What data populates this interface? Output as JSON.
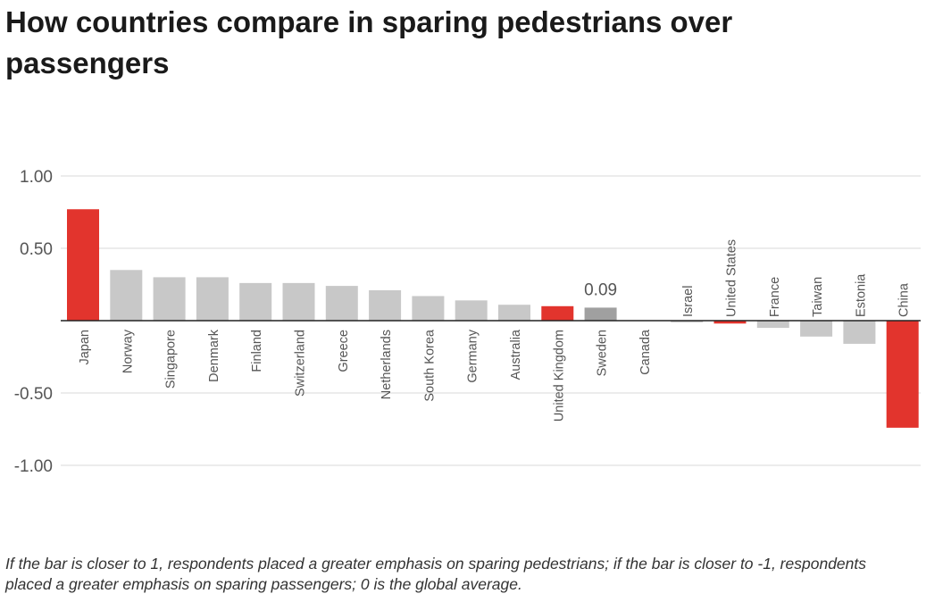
{
  "title": "How countries compare in sparing pedestrians over passengers",
  "note": "If the bar is closer to 1, respondents placed a greater emphasis on sparing pedestrians; if the bar is closer to -1, respondents placed a greater emphasis on sparing passengers; 0 is the global average.",
  "colors": {
    "highlight": "#e2342d",
    "default": "#c8c8c8",
    "sweden": "#a0a0a0",
    "grid": "#d9d9d9",
    "axis": "#222222",
    "text": "#555555"
  },
  "chart_data": {
    "type": "bar",
    "title": "How countries compare in sparing pedestrians over passengers",
    "xlabel": "",
    "ylabel": "",
    "ylim": [
      -1.0,
      1.0
    ],
    "yticks": [
      1.0,
      0.5,
      -0.5,
      -1.0
    ],
    "ytick_labels": [
      "1.00",
      "0.50",
      "-0.50",
      "-1.00"
    ],
    "grid": true,
    "categories": [
      "Japan",
      "Norway",
      "Singapore",
      "Denmark",
      "Finland",
      "Switzerland",
      "Greece",
      "Netherlands",
      "South Korea",
      "Germany",
      "Australia",
      "United Kingdom",
      "Sweden",
      "Canada",
      "Israel",
      "United States",
      "France",
      "Taiwan",
      "Estonia",
      "China"
    ],
    "values": [
      0.77,
      0.35,
      0.3,
      0.3,
      0.26,
      0.26,
      0.24,
      0.21,
      0.17,
      0.14,
      0.11,
      0.1,
      0.09,
      0.0,
      -0.01,
      -0.02,
      -0.05,
      -0.11,
      -0.16,
      -0.74
    ],
    "highlighted": [
      "Japan",
      "United Kingdom",
      "United States",
      "China"
    ],
    "annotations": [
      {
        "category": "Sweden",
        "text": "0.09"
      }
    ]
  }
}
